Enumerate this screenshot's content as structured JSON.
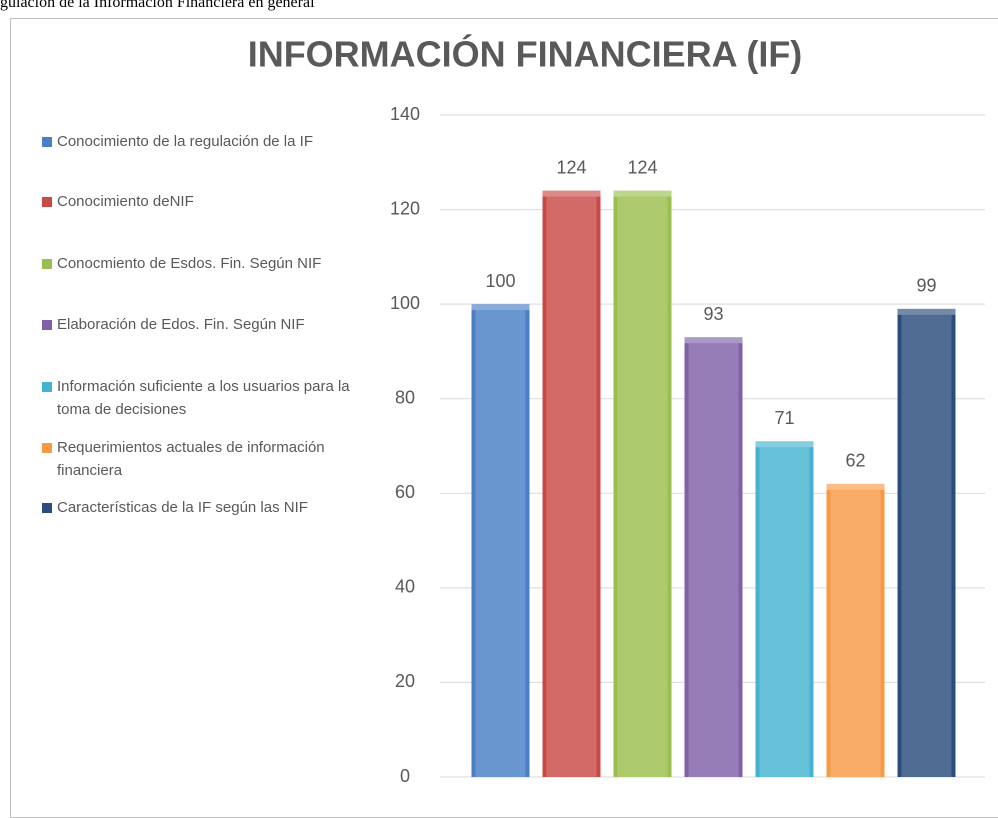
{
  "page_text": "gulación de la Información Financiera en general",
  "chart_data": {
    "type": "bar",
    "title": "INFORMACIÓN FINANCIERA (IF)",
    "categories": [
      "Conocimiento de la  regulación de la IF",
      "Conocimiento deNIF",
      "Conocmiento de Esdos. Fin. Según  NIF",
      "Elaboración de Edos. Fin. Según  NIF",
      "Información suficiente a los usuarios para la toma de decisiones",
      "Requerimientos actuales de información financiera",
      "Características de la IF según las NIF"
    ],
    "values": [
      100,
      124,
      124,
      93,
      71,
      62,
      99
    ],
    "colors": [
      "#4a7fc6",
      "#c94a47",
      "#9bbf4f",
      "#8061a8",
      "#44b2d0",
      "#f79a45",
      "#2b4c7c"
    ],
    "ylim": [
      0,
      140
    ],
    "yticks": [
      0,
      20,
      40,
      60,
      80,
      100,
      120,
      140
    ],
    "grid": true,
    "legend": "left"
  }
}
